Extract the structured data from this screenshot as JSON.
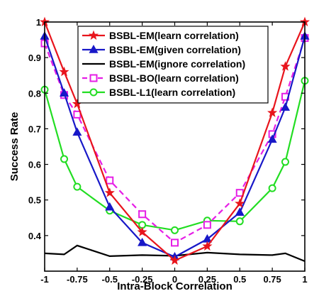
{
  "chart_data": {
    "type": "line",
    "xlabel": "Intra-Block Correlation",
    "ylabel": "Success Rate",
    "xlim": [
      -1,
      1
    ],
    "ylim": [
      0.3,
      1
    ],
    "xticks": [
      -1,
      -0.75,
      -0.5,
      -0.25,
      0,
      0.25,
      0.5,
      0.75,
      1
    ],
    "xtick_labels": [
      "-1",
      "-0.75",
      "-0.5",
      "-0.25",
      "0",
      "0.25",
      "0.5",
      "0.75",
      "1"
    ],
    "yticks": [
      0.4,
      0.5,
      0.6,
      0.7,
      0.8,
      0.9,
      1
    ],
    "ytick_labels": [
      "0.4",
      "0.5",
      "0.6",
      "0.7",
      "0.8",
      "0.9",
      "1"
    ],
    "grid": false,
    "legend_position": "top-center",
    "series": [
      {
        "name": "BSBL-EM(learn correlation)",
        "color": "#e8141c",
        "line_style": "solid",
        "marker": "star",
        "x": [
          -1,
          -0.85,
          -0.75,
          -0.5,
          -0.25,
          0,
          0.25,
          0.5,
          0.75,
          0.85,
          1
        ],
        "y": [
          1.0,
          0.86,
          0.77,
          0.52,
          0.41,
          0.33,
          0.37,
          0.49,
          0.745,
          0.875,
          1.0
        ]
      },
      {
        "name": "BSBL-EM(given correlation)",
        "color": "#1818c8",
        "line_style": "solid",
        "marker": "triangle",
        "x": [
          -1,
          -0.85,
          -0.75,
          -0.5,
          -0.25,
          0,
          0.25,
          0.5,
          0.75,
          0.85,
          1
        ],
        "y": [
          0.96,
          0.8,
          0.69,
          0.48,
          0.38,
          0.34,
          0.39,
          0.465,
          0.67,
          0.76,
          0.96
        ]
      },
      {
        "name": "BSBL-EM(ignore correlation)",
        "color": "#000000",
        "line_style": "solid",
        "marker": "none",
        "x": [
          -1,
          -0.85,
          -0.75,
          -0.5,
          -0.25,
          0,
          0.25,
          0.5,
          0.75,
          0.85,
          1
        ],
        "y": [
          0.35,
          0.347,
          0.372,
          0.342,
          0.345,
          0.343,
          0.352,
          0.347,
          0.345,
          0.35,
          0.328
        ]
      },
      {
        "name": "BSBL-BO(learn correlation)",
        "color": "#e61ee6",
        "line_style": "dashed",
        "marker": "square",
        "x": [
          -1,
          -0.85,
          -0.75,
          -0.5,
          -0.25,
          0,
          0.25,
          0.5,
          0.75,
          0.85,
          1
        ],
        "y": [
          0.94,
          0.795,
          0.74,
          0.555,
          0.46,
          0.38,
          0.43,
          0.52,
          0.685,
          0.79,
          0.955
        ]
      },
      {
        "name": "BSBL-L1(learn correlation)",
        "color": "#22dd22",
        "line_style": "solid",
        "marker": "circle",
        "x": [
          -1,
          -0.85,
          -0.75,
          -0.5,
          -0.25,
          0,
          0.25,
          0.5,
          0.75,
          0.85,
          1
        ],
        "y": [
          0.81,
          0.615,
          0.537,
          0.47,
          0.43,
          0.415,
          0.442,
          0.44,
          0.533,
          0.607,
          0.835
        ]
      }
    ]
  }
}
